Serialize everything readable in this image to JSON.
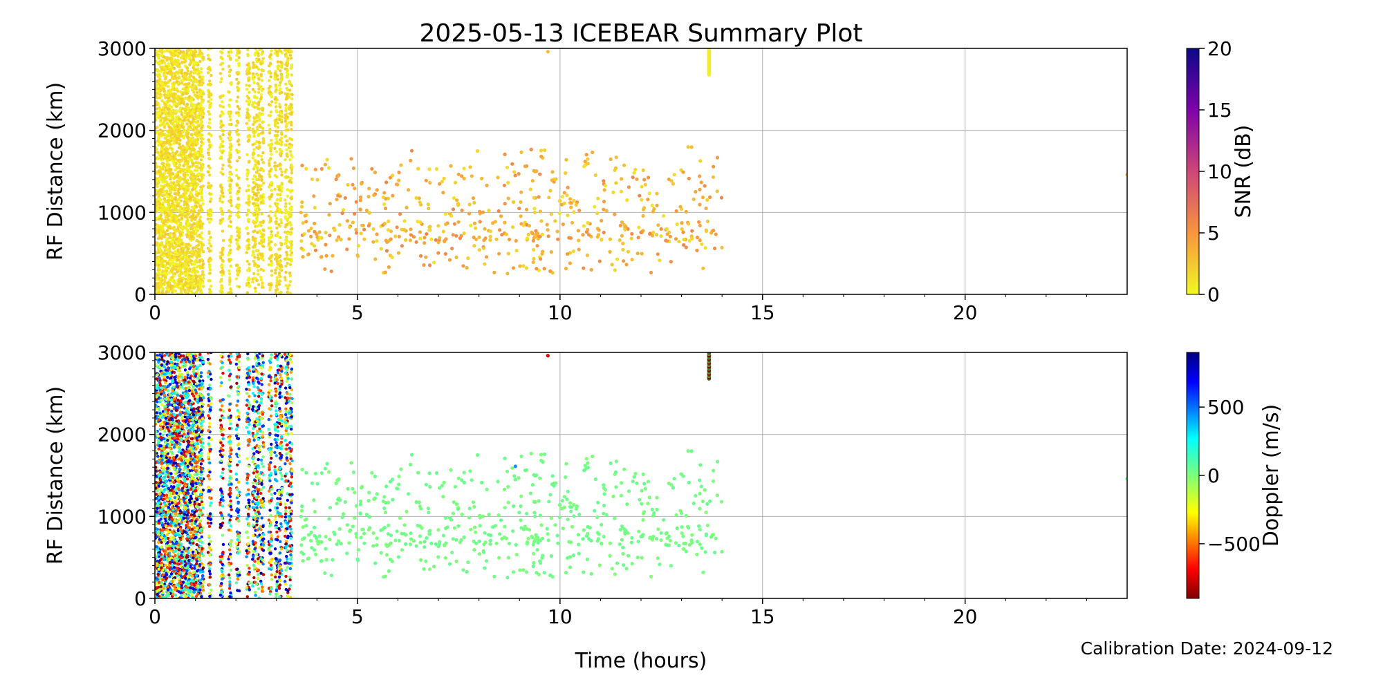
{
  "title": "2025-05-13 ICEBEAR Summary Plot",
  "xlabel": "Time (hours)",
  "footer": "Calibration Date: 2024-09-12",
  "chart_data": [
    {
      "type": "scatter",
      "panel": "snr",
      "ylabel": "RF Distance (km)",
      "xlim": [
        0,
        24
      ],
      "ylim": [
        0,
        3000
      ],
      "x_ticks": [
        "0",
        "5",
        "10",
        "15",
        "20"
      ],
      "y_ticks": [
        "0",
        "1000",
        "2000",
        "3000"
      ],
      "grid": true,
      "colorbar": {
        "label": "SNR (dB)",
        "range": [
          0,
          20
        ],
        "ticks": [
          "0",
          "5",
          "10",
          "15",
          "20"
        ],
        "colormap": "plasma_r"
      }
    },
    {
      "type": "scatter",
      "panel": "doppler",
      "ylabel": "RF Distance (km)",
      "xlim": [
        0,
        24
      ],
      "ylim": [
        0,
        3000
      ],
      "x_ticks": [
        "0",
        "5",
        "10",
        "15",
        "20"
      ],
      "y_ticks": [
        "0",
        "1000",
        "2000",
        "3000"
      ],
      "grid": true,
      "colorbar": {
        "label": "Doppler (m/s)",
        "range": [
          -900,
          900
        ],
        "ticks": [
          "−500",
          "0",
          "500"
        ],
        "tick_values": [
          -500,
          0,
          500
        ],
        "colormap": "jet_r"
      }
    }
  ],
  "point_groups": [
    {
      "name": "dense-band",
      "x_range": [
        0,
        1.2
      ],
      "y_range": [
        0,
        3000
      ],
      "approx_count": 2500
    },
    {
      "name": "vertical-stripes",
      "x_centers": [
        1.35,
        1.65,
        1.85,
        2.05,
        2.3,
        2.45,
        2.55,
        2.65,
        2.85,
        3.0,
        3.1,
        3.25,
        3.35
      ],
      "y_range": [
        0,
        3000
      ],
      "approx_count": 1400
    },
    {
      "name": "sparse-scatter",
      "x_range": [
        3.6,
        14.0
      ],
      "y_range": [
        250,
        1800
      ],
      "approx_count": 600,
      "snr_dB": 3,
      "doppler_ms": 30
    },
    {
      "name": "burst-13.7h",
      "x": 13.68,
      "y_range": [
        2680,
        3000
      ],
      "snr_dB": 0.5
    },
    {
      "name": "isolated",
      "points": [
        {
          "x": 9.7,
          "y": 2960
        },
        {
          "x": 24.0,
          "y": 1460
        }
      ]
    }
  ]
}
